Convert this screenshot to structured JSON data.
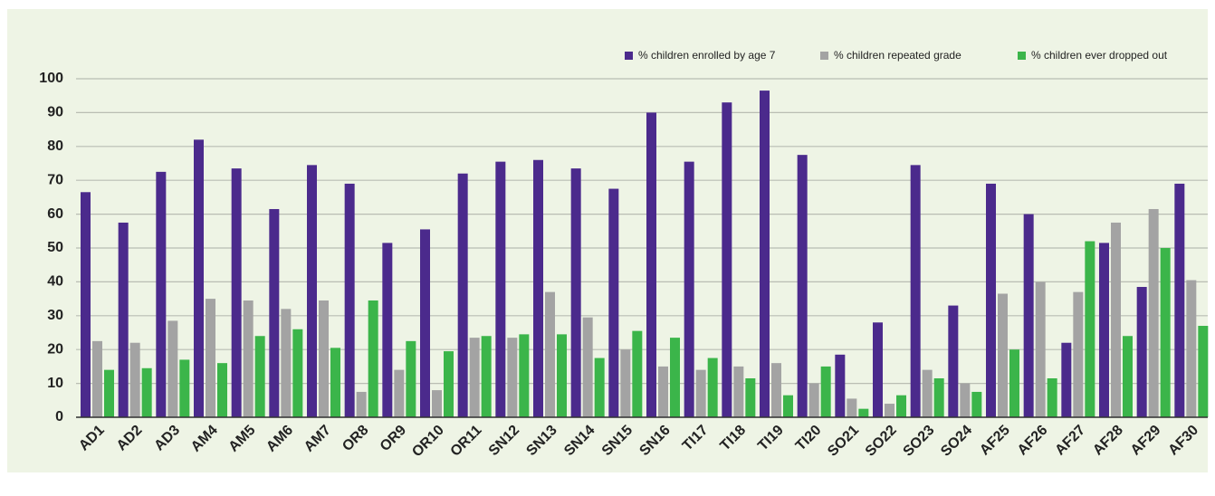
{
  "chart_data": {
    "type": "bar",
    "categories": [
      "AD1",
      "AD2",
      "AD3",
      "AM4",
      "AM5",
      "AM6",
      "AM7",
      "OR8",
      "OR9",
      "OR10",
      "OR11",
      "SN12",
      "SN13",
      "SN14",
      "SN15",
      "SN16",
      "TI17",
      "TI18",
      "TI19",
      "TI20",
      "SO21",
      "SO22",
      "SO23",
      "SO24",
      "AF25",
      "AF26",
      "AF27",
      "AF28",
      "AF29",
      "AF30"
    ],
    "series": [
      {
        "name": "% children enrolled by age 7",
        "color": "#4b2a8c",
        "values": [
          66.5,
          57.5,
          72.5,
          82,
          73.5,
          61.5,
          74.5,
          69,
          51.5,
          55.5,
          72,
          75.5,
          76,
          73.5,
          67.5,
          90,
          75.5,
          93,
          96.5,
          77.5,
          18.5,
          28,
          74.5,
          33,
          69,
          60,
          22,
          51.5,
          38.5,
          69
        ]
      },
      {
        "name": "% children repeated grade",
        "color": "#a3a3a3",
        "values": [
          22.5,
          22,
          28.5,
          35,
          34.5,
          32,
          34.5,
          7.5,
          14,
          8,
          23.5,
          23.5,
          37,
          29.5,
          20,
          15,
          14,
          15,
          16,
          10,
          5.5,
          4,
          14,
          10,
          36.5,
          40,
          37,
          57.5,
          61.5,
          40.5
        ]
      },
      {
        "name": "% children ever dropped out",
        "color": "#3bb54a",
        "values": [
          14,
          14.5,
          17,
          16,
          24,
          26,
          20.5,
          34.5,
          22.5,
          19.5,
          24,
          24.5,
          24.5,
          17.5,
          25.5,
          23.5,
          17.5,
          11.5,
          6.5,
          15,
          2.5,
          6.5,
          11.5,
          7.5,
          20,
          11.5,
          52,
          24,
          50,
          27
        ]
      }
    ],
    "ylim": [
      0,
      100
    ],
    "yticks": [
      0,
      10,
      20,
      30,
      40,
      50,
      60,
      70,
      80,
      90,
      100
    ],
    "grid": true,
    "legend": "top-right"
  }
}
